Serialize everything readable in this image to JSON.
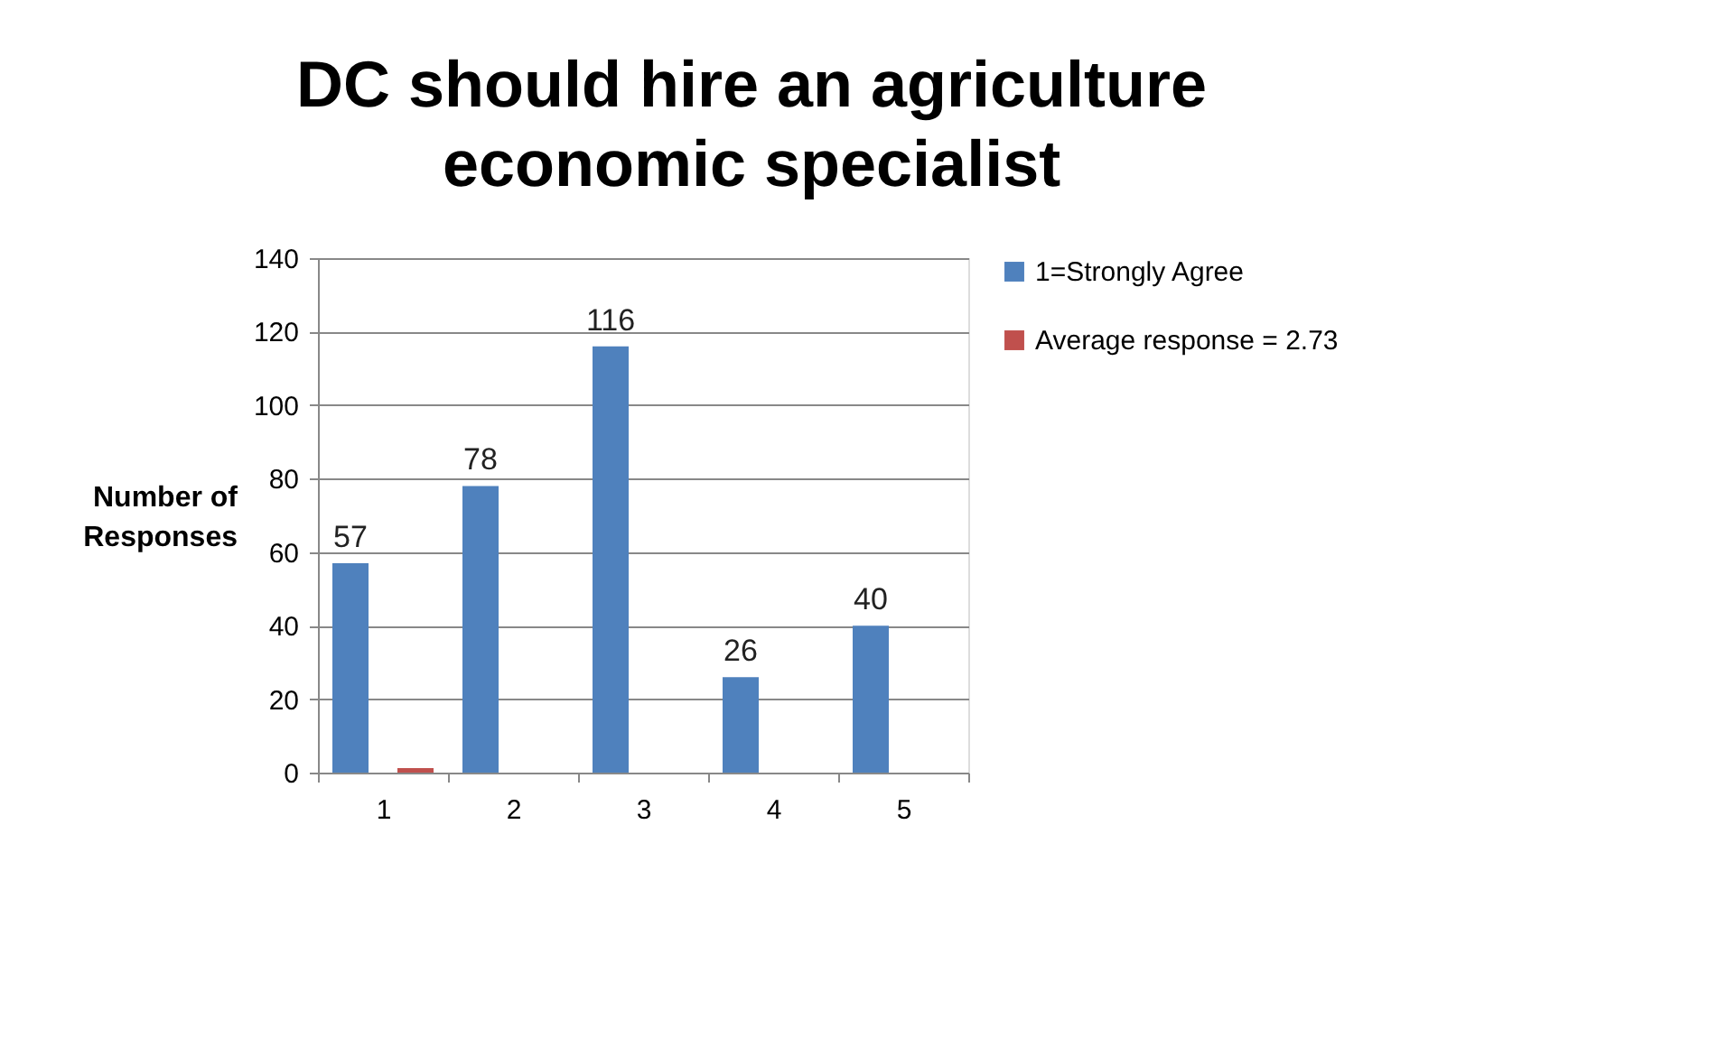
{
  "chart_data": {
    "type": "bar",
    "title": "DC should hire an agriculture economic specialist",
    "ylabel": "Number of Responses",
    "categories": [
      "1",
      "2",
      "3",
      "4",
      "5"
    ],
    "series": [
      {
        "name": "1=Strongly Agree",
        "color": "#4f81bd",
        "values": [
          57,
          78,
          116,
          26,
          40
        ],
        "value_labels": [
          "57",
          "78",
          "116",
          "26",
          "40"
        ]
      },
      {
        "name": "Average response = 2.73",
        "color": "#c0504d",
        "values": [
          1.2,
          null,
          null,
          null,
          null
        ]
      }
    ],
    "ylim": [
      0,
      140
    ],
    "yticks": [
      0,
      20,
      40,
      60,
      80,
      100,
      120,
      140
    ],
    "grid": "y",
    "legend": "right"
  }
}
